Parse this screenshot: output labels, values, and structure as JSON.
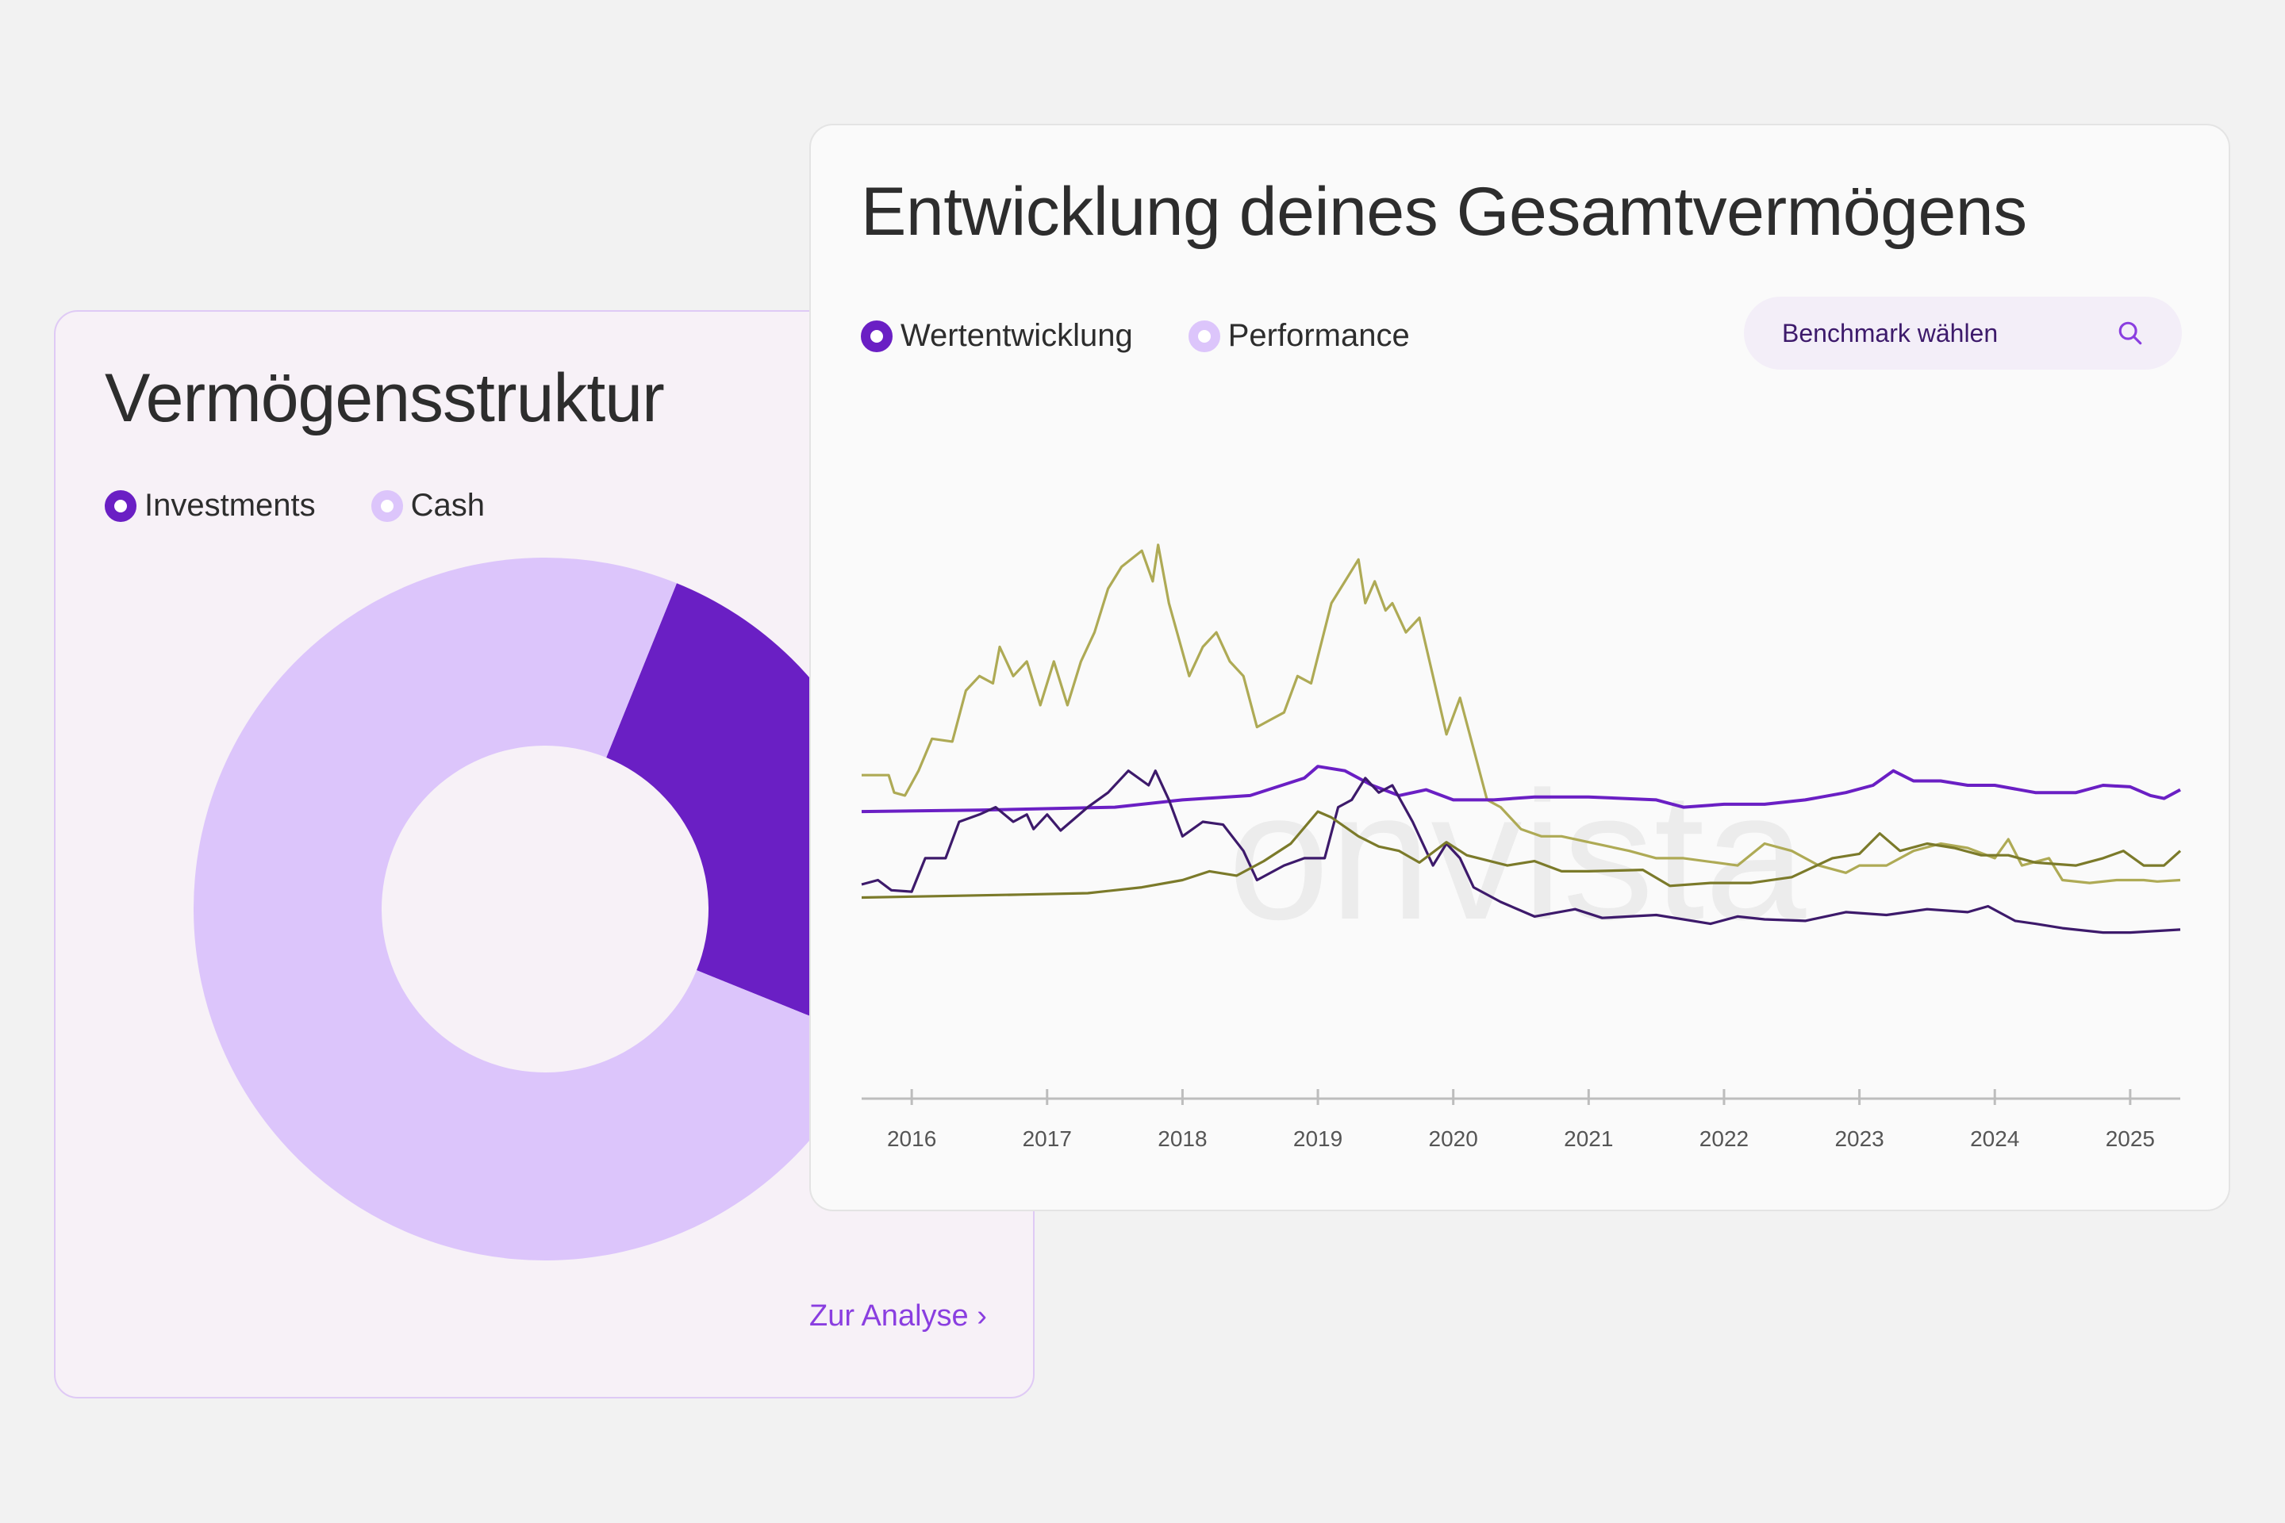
{
  "left_card": {
    "title": "Vermögensstruktur",
    "legend": [
      {
        "label": "Investments",
        "color": "#6a1fc4"
      },
      {
        "label": "Cash",
        "color": "#dcc5fb"
      }
    ],
    "donut": {
      "slices": [
        {
          "name": "Investments",
          "percent": 25,
          "color": "#6a1fc4"
        },
        {
          "name": "Cash",
          "percent": 75,
          "color": "#dcc5fb"
        }
      ]
    },
    "link_label": "Zur Analyse ›"
  },
  "right_card": {
    "title": "Entwicklung deines Gesamtvermögens",
    "legend": [
      {
        "label": "Wertentwicklung",
        "color": "#6a1fc4"
      },
      {
        "label": "Performance",
        "color": "#dcc5fb"
      }
    ],
    "benchmark_label": "Benchmark wählen",
    "watermark": "onvista"
  },
  "chart_data": {
    "type": "line",
    "title": "",
    "xlabel": "",
    "ylabel": "",
    "xlim": [
      2015.63,
      2025.37
    ],
    "ylim": [
      0,
      480
    ],
    "x_ticks": [
      2016,
      2017,
      2018,
      2019,
      2020,
      2021,
      2022,
      2023,
      2024,
      2025
    ],
    "x_tick_labels": [
      "2016",
      "2017",
      "2018",
      "2019",
      "2020",
      "2021",
      "2022",
      "2023",
      "2024",
      "2025"
    ],
    "grid": false,
    "series": [
      {
        "name": "benchmark-light-olive",
        "color": "#aeaa55",
        "points": [
          [
            2015.63,
            222
          ],
          [
            2015.83,
            222
          ],
          [
            2015.87,
            210
          ],
          [
            2015.95,
            208
          ],
          [
            2016.05,
            225
          ],
          [
            2016.15,
            247
          ],
          [
            2016.3,
            245
          ],
          [
            2016.4,
            280
          ],
          [
            2016.5,
            290
          ],
          [
            2016.6,
            285
          ],
          [
            2016.65,
            310
          ],
          [
            2016.75,
            290
          ],
          [
            2016.85,
            300
          ],
          [
            2016.95,
            270
          ],
          [
            2017.05,
            300
          ],
          [
            2017.15,
            270
          ],
          [
            2017.25,
            300
          ],
          [
            2017.35,
            320
          ],
          [
            2017.45,
            350
          ],
          [
            2017.55,
            365
          ],
          [
            2017.7,
            376
          ],
          [
            2017.78,
            355
          ],
          [
            2017.82,
            380
          ],
          [
            2017.9,
            340
          ],
          [
            2018.05,
            290
          ],
          [
            2018.15,
            310
          ],
          [
            2018.25,
            320
          ],
          [
            2018.35,
            300
          ],
          [
            2018.45,
            290
          ],
          [
            2018.55,
            255
          ],
          [
            2018.65,
            260
          ],
          [
            2018.75,
            265
          ],
          [
            2018.85,
            290
          ],
          [
            2018.95,
            285
          ],
          [
            2019.1,
            340
          ],
          [
            2019.2,
            355
          ],
          [
            2019.3,
            370
          ],
          [
            2019.35,
            340
          ],
          [
            2019.42,
            355
          ],
          [
            2019.5,
            335
          ],
          [
            2019.55,
            340
          ],
          [
            2019.65,
            320
          ],
          [
            2019.75,
            330
          ],
          [
            2019.85,
            290
          ],
          [
            2019.95,
            250
          ],
          [
            2020.05,
            275
          ],
          [
            2020.15,
            240
          ],
          [
            2020.25,
            205
          ],
          [
            2020.35,
            200
          ],
          [
            2020.5,
            185
          ],
          [
            2020.65,
            180
          ],
          [
            2020.8,
            180
          ],
          [
            2021.0,
            176
          ],
          [
            2021.3,
            170
          ],
          [
            2021.5,
            165
          ],
          [
            2021.7,
            165
          ],
          [
            2022.1,
            160
          ],
          [
            2022.3,
            175
          ],
          [
            2022.5,
            170
          ],
          [
            2022.7,
            160
          ],
          [
            2022.9,
            155
          ],
          [
            2023.0,
            160
          ],
          [
            2023.2,
            160
          ],
          [
            2023.4,
            170
          ],
          [
            2023.6,
            175
          ],
          [
            2023.8,
            172
          ],
          [
            2024.0,
            165
          ],
          [
            2024.1,
            178
          ],
          [
            2024.2,
            160
          ],
          [
            2024.4,
            165
          ],
          [
            2024.5,
            150
          ],
          [
            2024.7,
            148
          ],
          [
            2024.9,
            150
          ],
          [
            2025.1,
            150
          ],
          [
            2025.2,
            149
          ],
          [
            2025.37,
            150
          ]
        ]
      },
      {
        "name": "wertentwicklung",
        "color": "#6a1fc4",
        "points": [
          [
            2015.63,
            197
          ],
          [
            2016.5,
            198
          ],
          [
            2017.5,
            200
          ],
          [
            2018.0,
            205
          ],
          [
            2018.5,
            208
          ],
          [
            2018.9,
            220
          ],
          [
            2019.0,
            228
          ],
          [
            2019.2,
            225
          ],
          [
            2019.4,
            215
          ],
          [
            2019.6,
            208
          ],
          [
            2019.8,
            212
          ],
          [
            2020.0,
            205
          ],
          [
            2020.3,
            205
          ],
          [
            2020.6,
            207
          ],
          [
            2021.0,
            207
          ],
          [
            2021.5,
            205
          ],
          [
            2021.7,
            200
          ],
          [
            2022.0,
            202
          ],
          [
            2022.3,
            202
          ],
          [
            2022.6,
            205
          ],
          [
            2022.9,
            210
          ],
          [
            2023.1,
            215
          ],
          [
            2023.25,
            225
          ],
          [
            2023.4,
            218
          ],
          [
            2023.6,
            218
          ],
          [
            2023.8,
            215
          ],
          [
            2024.0,
            215
          ],
          [
            2024.3,
            210
          ],
          [
            2024.6,
            210
          ],
          [
            2024.8,
            215
          ],
          [
            2025.0,
            214
          ],
          [
            2025.15,
            208
          ],
          [
            2025.25,
            206
          ],
          [
            2025.37,
            212
          ]
        ]
      },
      {
        "name": "performance-dark",
        "color": "#3d1a6b",
        "points": [
          [
            2015.63,
            147
          ],
          [
            2015.75,
            150
          ],
          [
            2015.85,
            143
          ],
          [
            2016.0,
            142
          ],
          [
            2016.1,
            165
          ],
          [
            2016.25,
            165
          ],
          [
            2016.35,
            190
          ],
          [
            2016.5,
            195
          ],
          [
            2016.62,
            200
          ],
          [
            2016.75,
            190
          ],
          [
            2016.85,
            195
          ],
          [
            2016.9,
            185
          ],
          [
            2017.0,
            195
          ],
          [
            2017.1,
            184
          ],
          [
            2017.3,
            200
          ],
          [
            2017.45,
            210
          ],
          [
            2017.6,
            225
          ],
          [
            2017.75,
            215
          ],
          [
            2017.8,
            225
          ],
          [
            2017.9,
            205
          ],
          [
            2018.0,
            180
          ],
          [
            2018.15,
            190
          ],
          [
            2018.3,
            188
          ],
          [
            2018.45,
            170
          ],
          [
            2018.55,
            150
          ],
          [
            2018.75,
            160
          ],
          [
            2018.9,
            165
          ],
          [
            2019.05,
            165
          ],
          [
            2019.15,
            200
          ],
          [
            2019.25,
            205
          ],
          [
            2019.35,
            220
          ],
          [
            2019.45,
            210
          ],
          [
            2019.55,
            215
          ],
          [
            2019.7,
            190
          ],
          [
            2019.85,
            160
          ],
          [
            2019.95,
            175
          ],
          [
            2020.05,
            165
          ],
          [
            2020.15,
            145
          ],
          [
            2020.35,
            135
          ],
          [
            2020.6,
            125
          ],
          [
            2020.9,
            130
          ],
          [
            2021.1,
            124
          ],
          [
            2021.5,
            126
          ],
          [
            2021.9,
            120
          ],
          [
            2022.1,
            125
          ],
          [
            2022.3,
            123
          ],
          [
            2022.6,
            122
          ],
          [
            2022.9,
            128
          ],
          [
            2023.2,
            126
          ],
          [
            2023.5,
            130
          ],
          [
            2023.8,
            128
          ],
          [
            2023.95,
            132
          ],
          [
            2024.15,
            122
          ],
          [
            2024.3,
            120
          ],
          [
            2024.5,
            117
          ],
          [
            2024.8,
            114
          ],
          [
            2025.0,
            114
          ],
          [
            2025.37,
            116
          ]
        ]
      },
      {
        "name": "benchmark-dark-olive",
        "color": "#7b7a2a",
        "points": [
          [
            2015.63,
            138
          ],
          [
            2016.2,
            139
          ],
          [
            2016.8,
            140
          ],
          [
            2017.3,
            141
          ],
          [
            2017.7,
            145
          ],
          [
            2018.0,
            150
          ],
          [
            2018.2,
            156
          ],
          [
            2018.4,
            153
          ],
          [
            2018.6,
            163
          ],
          [
            2018.8,
            175
          ],
          [
            2019.0,
            197
          ],
          [
            2019.1,
            193
          ],
          [
            2019.3,
            180
          ],
          [
            2019.45,
            173
          ],
          [
            2019.6,
            170
          ],
          [
            2019.75,
            162
          ],
          [
            2019.95,
            176
          ],
          [
            2020.1,
            167
          ],
          [
            2020.4,
            160
          ],
          [
            2020.6,
            163
          ],
          [
            2020.8,
            156
          ],
          [
            2021.0,
            156
          ],
          [
            2021.4,
            157
          ],
          [
            2021.6,
            146
          ],
          [
            2021.9,
            148
          ],
          [
            2022.2,
            148
          ],
          [
            2022.5,
            152
          ],
          [
            2022.8,
            165
          ],
          [
            2023.0,
            168
          ],
          [
            2023.15,
            182
          ],
          [
            2023.3,
            170
          ],
          [
            2023.5,
            175
          ],
          [
            2023.7,
            172
          ],
          [
            2023.9,
            167
          ],
          [
            2024.1,
            167
          ],
          [
            2024.3,
            162
          ],
          [
            2024.6,
            160
          ],
          [
            2024.8,
            165
          ],
          [
            2024.95,
            170
          ],
          [
            2025.1,
            160
          ],
          [
            2025.25,
            160
          ],
          [
            2025.37,
            170
          ]
        ]
      }
    ]
  }
}
